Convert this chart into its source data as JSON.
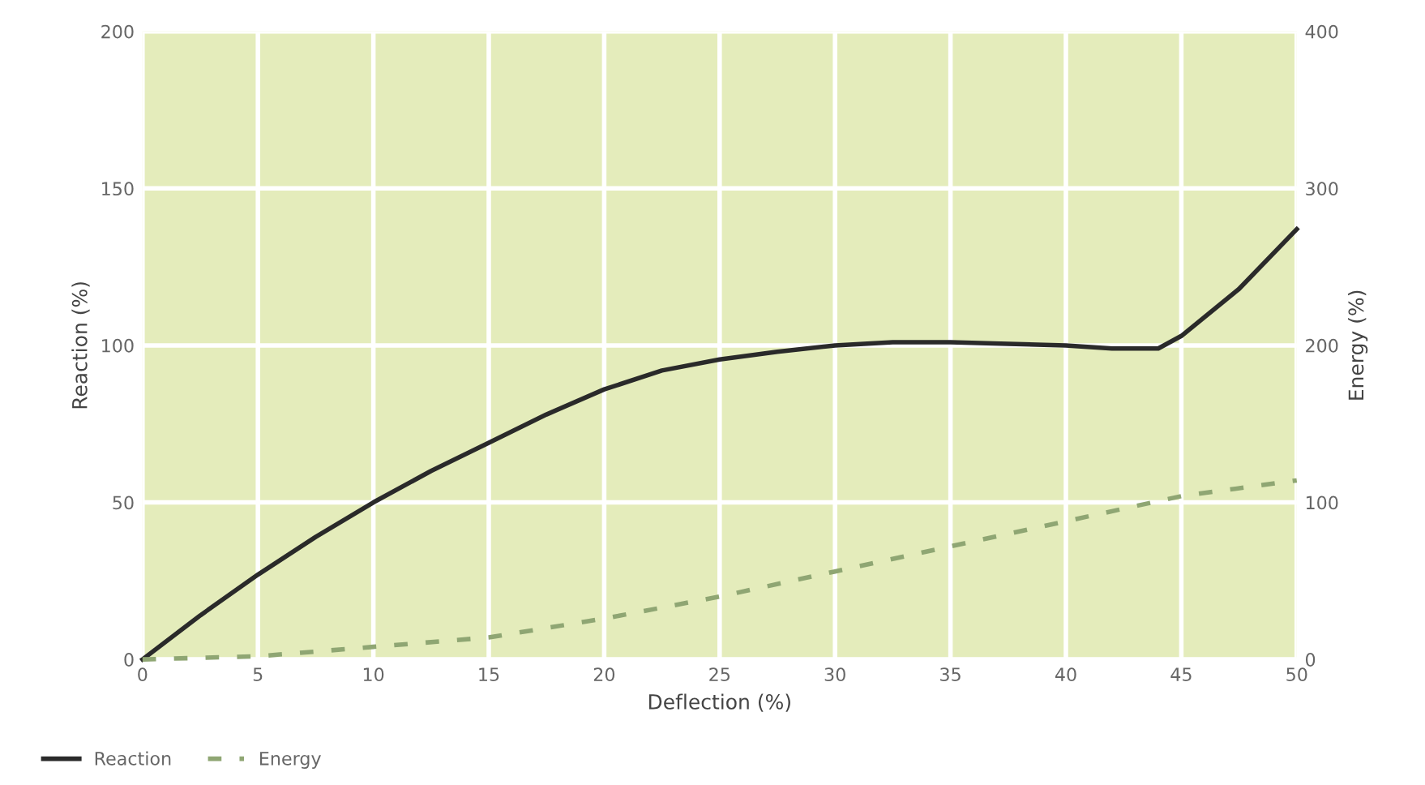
{
  "chart_data": {
    "type": "line",
    "xlabel": "Deflection (%)",
    "ylabel": "Reaction (%)",
    "y2label": "Energy (%)",
    "xlim": [
      0,
      50
    ],
    "xticks": [
      0,
      5,
      10,
      15,
      20,
      25,
      30,
      35,
      40,
      45,
      50
    ],
    "ylim": [
      0,
      200
    ],
    "yticks": [
      0,
      50,
      100,
      150,
      200
    ],
    "y2lim": [
      0,
      400
    ],
    "y2ticks": [
      0,
      100,
      200,
      300,
      400
    ],
    "grid": true,
    "legend": "bottom left",
    "series": [
      {
        "name": "Reaction",
        "color": "#2a2a2a",
        "line_style": "solid",
        "x": [
          0,
          2.5,
          5,
          7.5,
          10,
          12.5,
          15,
          17.5,
          20,
          22.5,
          25,
          27.5,
          30,
          32.5,
          35,
          37.5,
          40,
          42,
          44,
          45,
          47.5,
          50
        ],
        "values": [
          0,
          14,
          27,
          39,
          50,
          60,
          69,
          78,
          86,
          92,
          95.5,
          98,
          100,
          101,
          101,
          100.5,
          100,
          99,
          99,
          103,
          118,
          137
        ]
      },
      {
        "name": "Energy",
        "color": "#8fa673",
        "line_style": "dashed",
        "axis": "y2",
        "x": [
          0,
          5,
          10,
          15,
          20,
          25,
          30,
          35,
          40,
          45,
          50
        ],
        "values": [
          0,
          2,
          8,
          14,
          26,
          40,
          56,
          72,
          88,
          104,
          114
        ]
      }
    ]
  }
}
